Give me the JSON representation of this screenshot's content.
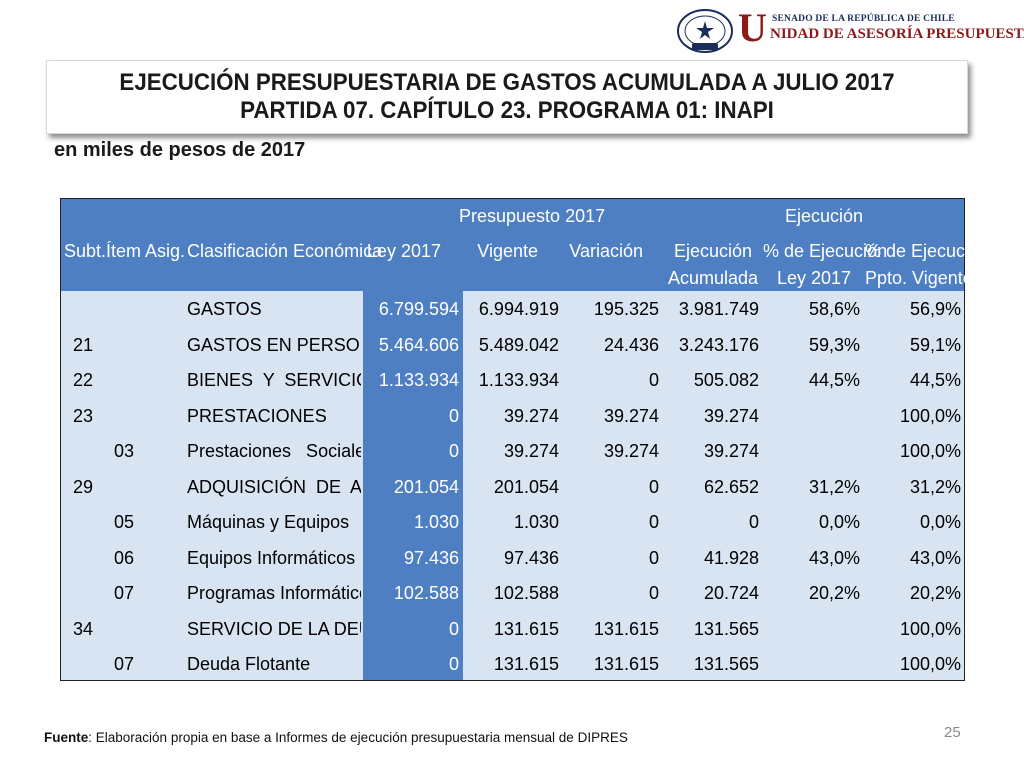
{
  "logo": {
    "seal_text": "REPÚBLICA DE CHILE",
    "seal_bottom": "SENADO",
    "big_letter": "U",
    "small_line": "SENADO DE LA REPÚBLICA DE CHILE",
    "main_line": "NIDAD DE ASESORÍA PRESUPUESTARIA"
  },
  "title": {
    "line1": "EJECUCIÓN PRESUPUESTARIA DE GASTOS ACUMULADA A JULIO 2017",
    "line2": "PARTIDA 07. CAPÍTULO 23. PROGRAMA 01: INAPI"
  },
  "subtitle": "en miles de pesos de 2017",
  "colors": {
    "header_blue": "#4f7fc3",
    "column_blue": "#4f7fc3",
    "light_blue": "#d9e4f2",
    "title_text": "#1a1a1a",
    "logo_red": "#8b1a1a"
  },
  "table": {
    "group_headers": {
      "presupuesto": "Presupuesto 2017",
      "ejecucion": "Ejecución"
    },
    "headers": {
      "subt": "Subt.",
      "item": "Ítem",
      "asig": "Asig.",
      "clasif": "Clasificación Económica",
      "ley": "Ley 2017",
      "vigente": "Vigente",
      "variacion": "Variación",
      "ejec_1": "Ejecución",
      "ejec_2": "Acumulada",
      "pct_ley_1": "% de Ejecución",
      "pct_ley_2": "Ley 2017",
      "pct_vig_1": "% de Ejecución",
      "pct_vig_2": "Ppto. Vigente"
    },
    "rows": [
      {
        "subt": "",
        "item": "",
        "clasif": "GASTOS",
        "ley": "6.799.594",
        "vigente": "6.994.919",
        "variacion": "195.325",
        "ejecucion": "3.981.749",
        "pct_ley": "58,6%",
        "pct_vig": "56,9%"
      },
      {
        "subt": "21",
        "item": "",
        "clasif": "GASTOS EN PERSONAL",
        "ley": "5.464.606",
        "vigente": "5.489.042",
        "variacion": "24.436",
        "ejecucion": "3.243.176",
        "pct_ley": "59,3%",
        "pct_vig": "59,1%"
      },
      {
        "subt": "22",
        "item": "",
        "clasif": "BIENES  Y  SERVICIOS  DE",
        "ley": "1.133.934",
        "vigente": "1.133.934",
        "variacion": "0",
        "ejecucion": "505.082",
        "pct_ley": "44,5%",
        "pct_vig": "44,5%"
      },
      {
        "subt": "23",
        "item": "",
        "clasif": "PRESTACIONES               DE",
        "ley": "0",
        "vigente": "39.274",
        "variacion": "39.274",
        "ejecucion": "39.274",
        "pct_ley": "",
        "pct_vig": "100,0%"
      },
      {
        "subt": "",
        "item": "03",
        "clasif": "Prestaciones   Sociales   del",
        "ley": "0",
        "vigente": "39.274",
        "variacion": "39.274",
        "ejecucion": "39.274",
        "pct_ley": "",
        "pct_vig": "100,0%"
      },
      {
        "subt": "29",
        "item": "",
        "clasif": "ADQUISICIÓN  DE  ACTIVOS",
        "ley": "201.054",
        "vigente": "201.054",
        "variacion": "0",
        "ejecucion": "62.652",
        "pct_ley": "31,2%",
        "pct_vig": "31,2%"
      },
      {
        "subt": "",
        "item": "05",
        "clasif": "Máquinas y Equipos",
        "ley": "1.030",
        "vigente": "1.030",
        "variacion": "0",
        "ejecucion": "0",
        "pct_ley": "0,0%",
        "pct_vig": "0,0%"
      },
      {
        "subt": "",
        "item": "06",
        "clasif": "Equipos Informáticos",
        "ley": "97.436",
        "vigente": "97.436",
        "variacion": "0",
        "ejecucion": "41.928",
        "pct_ley": "43,0%",
        "pct_vig": "43,0%"
      },
      {
        "subt": "",
        "item": "07",
        "clasif": "Programas Informáticos",
        "ley": "102.588",
        "vigente": "102.588",
        "variacion": "0",
        "ejecucion": "20.724",
        "pct_ley": "20,2%",
        "pct_vig": "20,2%"
      },
      {
        "subt": "34",
        "item": "",
        "clasif": "SERVICIO DE LA DEUDA",
        "ley": "0",
        "vigente": "131.615",
        "variacion": "131.615",
        "ejecucion": "131.565",
        "pct_ley": "",
        "pct_vig": "100,0%"
      },
      {
        "subt": "",
        "item": "07",
        "clasif": "Deuda Flotante",
        "ley": "0",
        "vigente": "131.615",
        "variacion": "131.615",
        "ejecucion": "131.565",
        "pct_ley": "",
        "pct_vig": "100,0%"
      }
    ]
  },
  "footer": {
    "label": "Fuente",
    "text": ": Elaboración propia en base  a Informes de ejecución presupuestaria mensual de DIPRES"
  },
  "page_number": "25"
}
